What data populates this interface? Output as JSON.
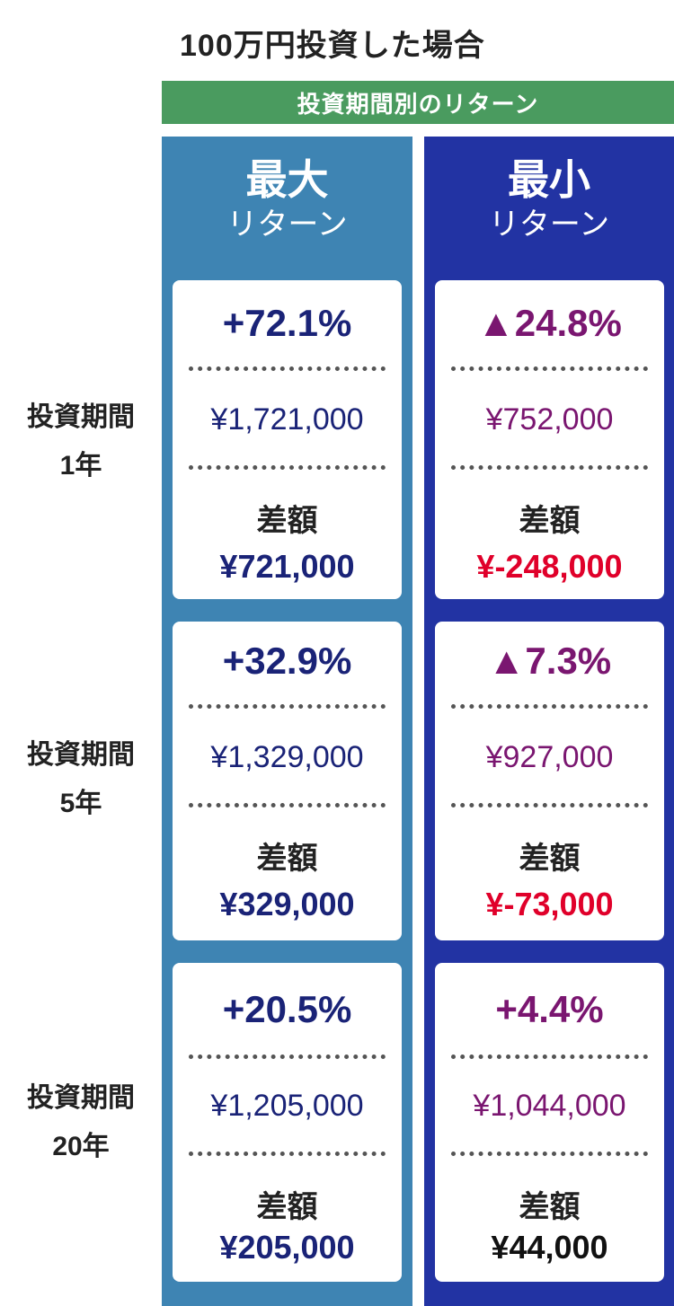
{
  "title": "100万円投資した場合",
  "banner": "投資期間別のリターン",
  "columns": {
    "max": {
      "title": "最大",
      "subtitle": "リターン"
    },
    "min": {
      "title": "最小",
      "subtitle": "リターン"
    }
  },
  "diff_label": "差額",
  "rows": [
    {
      "label_line1": "投資期間",
      "label_line2": "1年",
      "max": {
        "pct": "+72.1%",
        "amount": "¥1,721,000",
        "diff": "¥721,000"
      },
      "min": {
        "pct": "▲24.8%",
        "amount": "¥752,000",
        "diff": "¥-248,000"
      }
    },
    {
      "label_line1": "投資期間",
      "label_line2": "5年",
      "max": {
        "pct": "+32.9%",
        "amount": "¥1,329,000",
        "diff": "¥329,000"
      },
      "min": {
        "pct": "▲7.3%",
        "amount": "¥927,000",
        "diff": "¥-73,000"
      }
    },
    {
      "label_line1": "投資期間",
      "label_line2": "20年",
      "max": {
        "pct": "+20.5%",
        "amount": "¥1,205,000",
        "diff": "¥205,000"
      },
      "min": {
        "pct": "+4.4%",
        "amount": "¥1,044,000",
        "diff": "¥44,000"
      }
    }
  ],
  "chart_data": {
    "type": "table",
    "title": "100万円投資した場合",
    "subtitle": "投資期間別のリターン",
    "columns": [
      "最大リターン",
      "最小リターン"
    ],
    "rows": [
      "投資期間1年",
      "投資期間5年",
      "投資期間20年"
    ],
    "series": [
      {
        "name": "最大リターン",
        "return_pct": [
          72.1,
          32.9,
          20.5
        ],
        "value_yen": [
          1721000,
          1329000,
          1205000
        ],
        "diff_yen": [
          721000,
          329000,
          205000
        ]
      },
      {
        "name": "最小リターン",
        "return_pct": [
          -24.8,
          -7.3,
          4.4
        ],
        "value_yen": [
          752000,
          927000,
          1044000
        ],
        "diff_yen": [
          -248000,
          -73000,
          44000
        ]
      }
    ]
  },
  "colors": {
    "banner_green": "#4a9b5f",
    "max_column_blue": "#3e84b3",
    "min_column_blue": "#2233a3",
    "navy_text": "#1a2377",
    "purple_text": "#7a1670",
    "negative_red": "#e0002a"
  }
}
